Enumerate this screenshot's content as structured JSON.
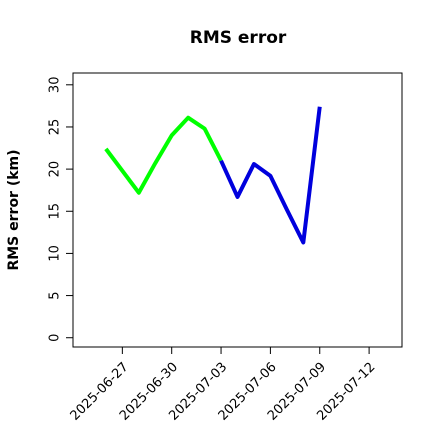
{
  "chart_data": {
    "type": "line",
    "title": "RMS error",
    "y_label": "RMS error (km)",
    "x": [
      "2025-06-26",
      "2025-06-28",
      "2025-06-29",
      "2025-06-30",
      "2025-07-01",
      "2025-07-02",
      "2025-07-03",
      "2025-07-04",
      "2025-07-05",
      "2025-07-06",
      "2025-07-07",
      "2025-07-08",
      "2025-07-09"
    ],
    "series": [
      {
        "color": "#00ff00",
        "values": [
          22.4,
          17.2,
          20.7,
          24.0,
          26.1,
          24.8,
          21.0,
          null,
          null,
          null,
          null,
          null,
          null
        ]
      },
      {
        "color": "#0000dd",
        "values": [
          null,
          null,
          null,
          null,
          null,
          null,
          21.0,
          16.7,
          20.6,
          19.2,
          15.2,
          11.3,
          27.4
        ]
      }
    ],
    "xlim": [
      "2025-06-24",
      "2025-07-14"
    ],
    "xticks": [
      "2025-06-27",
      "2025-06-30",
      "2025-07-03",
      "2025-07-06",
      "2025-07-09",
      "2025-07-12"
    ],
    "xtick_colors": [
      "#000000",
      "#000000",
      "#228b22",
      "#000000",
      "#000000",
      "#000000"
    ],
    "ylim": [
      -1.1,
      31.4
    ],
    "yticks": [
      0,
      5,
      10,
      15,
      20,
      25,
      30
    ]
  }
}
